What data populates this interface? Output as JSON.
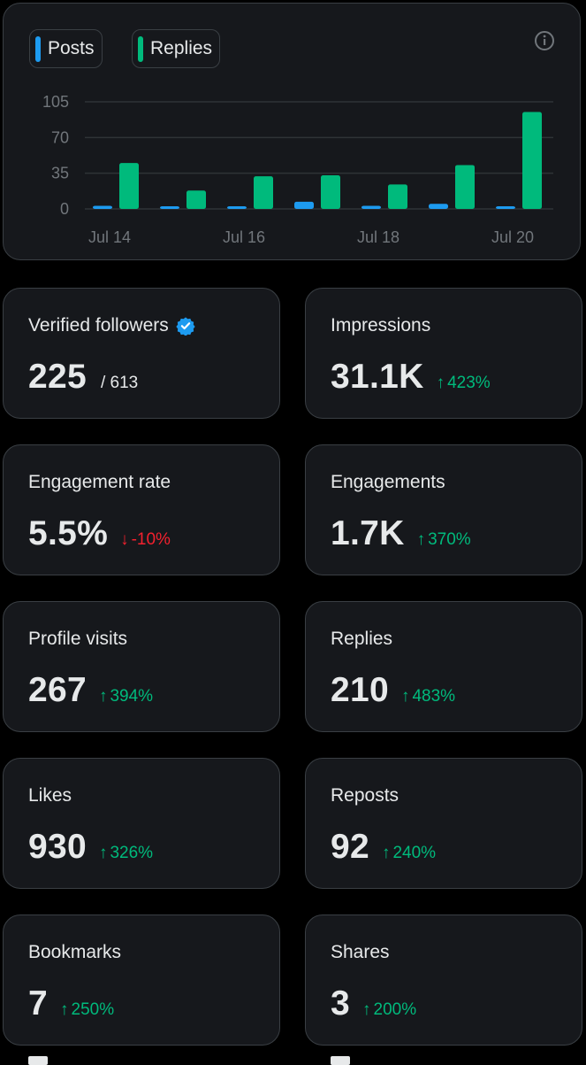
{
  "chart": {
    "legend": [
      {
        "label": "Posts",
        "color": "#1d9bf0"
      },
      {
        "label": "Replies",
        "color": "#00ba7c"
      }
    ]
  },
  "chart_data": {
    "type": "bar",
    "categories": [
      "Jul 14",
      "Jul 15",
      "Jul 16",
      "Jul 17",
      "Jul 18",
      "Jul 19",
      "Jul 20"
    ],
    "x_tick_labels": [
      "Jul 14",
      "Jul 16",
      "Jul 18",
      "Jul 20"
    ],
    "y_ticks": [
      "105",
      "70",
      "35",
      "0"
    ],
    "ylim": [
      0,
      105
    ],
    "series": [
      {
        "name": "Posts",
        "color": "#1d9bf0",
        "values": [
          3,
          1,
          2,
          7,
          3,
          5,
          2
        ]
      },
      {
        "name": "Replies",
        "color": "#00ba7c",
        "values": [
          45,
          18,
          32,
          33,
          24,
          43,
          95
        ]
      }
    ],
    "grid": true,
    "legend_position": "top-left"
  },
  "cards": [
    {
      "label": "Verified followers",
      "value": "225",
      "sub": "/ 613",
      "verified": true
    },
    {
      "label": "Impressions",
      "value": "31.1K",
      "change": "423%",
      "dir": "up",
      "arrow": "↑"
    },
    {
      "label": "Engagement rate",
      "value": "5.5%",
      "change": "-10%",
      "dir": "down",
      "arrow": "↓"
    },
    {
      "label": "Engagements",
      "value": "1.7K",
      "change": "370%",
      "dir": "up",
      "arrow": "↑"
    },
    {
      "label": "Profile visits",
      "value": "267",
      "change": "394%",
      "dir": "up",
      "arrow": "↑"
    },
    {
      "label": "Replies",
      "value": "210",
      "change": "483%",
      "dir": "up",
      "arrow": "↑"
    },
    {
      "label": "Likes",
      "value": "930",
      "change": "326%",
      "dir": "up",
      "arrow": "↑"
    },
    {
      "label": "Reposts",
      "value": "92",
      "change": "240%",
      "dir": "up",
      "arrow": "↑"
    },
    {
      "label": "Bookmarks",
      "value": "7",
      "change": "250%",
      "dir": "up",
      "arrow": "↑"
    },
    {
      "label": "Shares",
      "value": "3",
      "change": "200%",
      "dir": "up",
      "arrow": "↑"
    }
  ],
  "icons": {
    "info": "info-icon",
    "verified": "verified-badge-icon"
  }
}
